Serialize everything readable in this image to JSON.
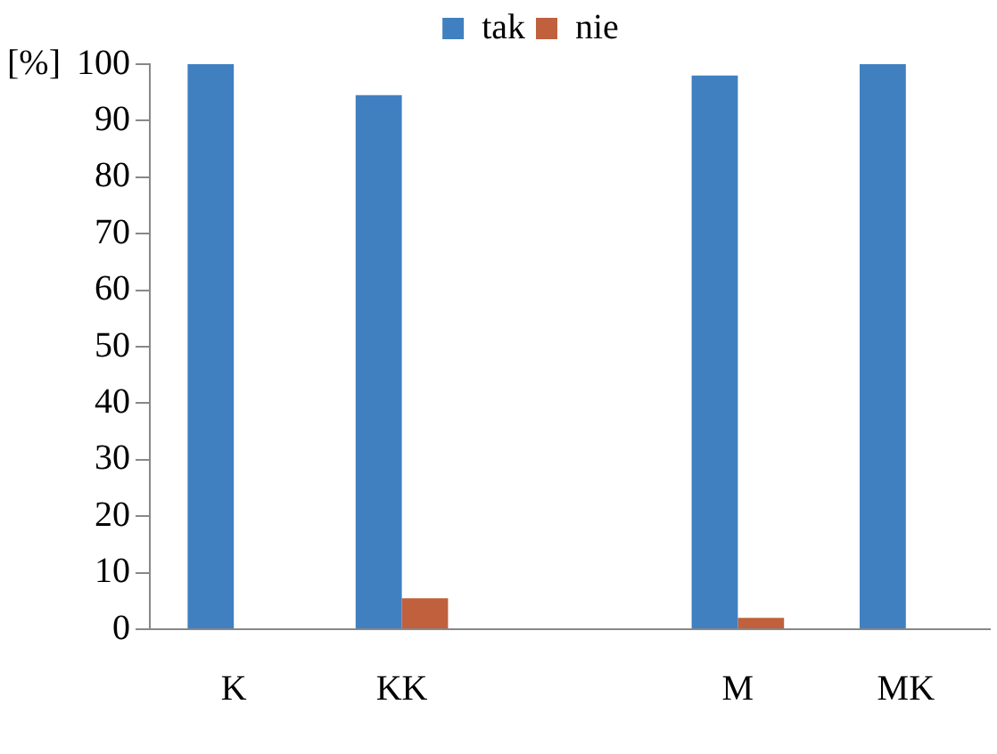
{
  "chart_data": {
    "type": "bar",
    "ylabel": "[%]",
    "categories": [
      "K",
      "KK",
      null,
      "M",
      "MK"
    ],
    "series": [
      {
        "name": "tak",
        "color": "#4080c0",
        "values": [
          100,
          94.5,
          null,
          98,
          100
        ]
      },
      {
        "name": "nie",
        "color": "#c0603c",
        "values": [
          0,
          5.5,
          null,
          2,
          0
        ]
      }
    ],
    "ylim": [
      0,
      100
    ],
    "yticks": [
      0,
      10,
      20,
      30,
      40,
      50,
      60,
      70,
      80,
      90,
      100
    ],
    "grid": false,
    "legend": "top"
  }
}
